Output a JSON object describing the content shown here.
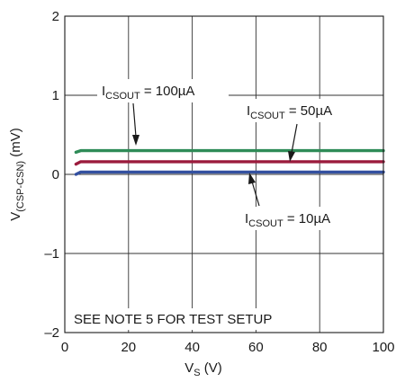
{
  "chart_data": {
    "type": "line",
    "xlabel": {
      "main": "V",
      "sub": "S",
      "unit": " (V)"
    },
    "ylabel": {
      "main": "V",
      "sub": "(CSP-CSN)",
      "unit": " (mV)"
    },
    "xlim": [
      0,
      100
    ],
    "ylim": [
      -2,
      2
    ],
    "x_ticks": [
      "0",
      "20",
      "40",
      "60",
      "80",
      "100"
    ],
    "y_ticks": [
      "2",
      "1",
      "0",
      "–1",
      "–2"
    ],
    "grid": true,
    "series": [
      {
        "name": "I_CSOUT = 100µA",
        "color": "#2e8b57",
        "x": [
          3.5,
          5,
          100
        ],
        "y": [
          0.28,
          0.3,
          0.3
        ]
      },
      {
        "name": "I_CSOUT = 50µA",
        "color": "#9b1b3c",
        "x": [
          3.5,
          5,
          100
        ],
        "y": [
          0.13,
          0.16,
          0.16
        ]
      },
      {
        "name": "I_CSOUT = 10µA",
        "color": "#3350a0",
        "x": [
          3.5,
          5,
          100
        ],
        "y": [
          0.0,
          0.03,
          0.03
        ]
      }
    ],
    "annotations": [
      {
        "main": "I",
        "sub": "CSOUT",
        "rest": " = 100µA"
      },
      {
        "main": "I",
        "sub": "CSOUT",
        "rest": " = 50µA"
      },
      {
        "main": "I",
        "sub": "CSOUT",
        "rest": " = 10µA"
      }
    ],
    "note": "SEE NOTE 5 FOR TEST SETUP"
  }
}
